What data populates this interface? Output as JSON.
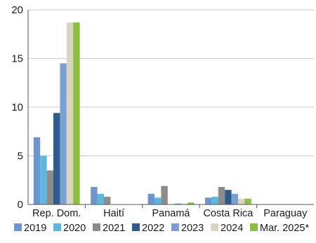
{
  "chart_data": {
    "type": "bar",
    "title": "",
    "xlabel": "",
    "ylabel": "",
    "ylim": [
      0,
      20
    ],
    "yticks": [
      "0",
      "5",
      "10",
      "15",
      "20"
    ],
    "grid": true,
    "legend_placement": "bottom",
    "categories": [
      "Rep. Dom.",
      "Haití",
      "Panamá",
      "Costa Rica",
      "Paraguay"
    ],
    "series": [
      {
        "name": "2019",
        "color": "#6e95cc",
        "values": [
          6.9,
          1.8,
          1.1,
          0.7,
          0.0
        ]
      },
      {
        "name": "2020",
        "color": "#5cb8e3",
        "values": [
          5.0,
          1.1,
          0.7,
          0.8,
          0.0
        ]
      },
      {
        "name": "2021",
        "color": "#8c8c8c",
        "values": [
          3.5,
          0.8,
          1.9,
          1.8,
          0.0
        ]
      },
      {
        "name": "2022",
        "color": "#2e5b8e",
        "values": [
          9.4,
          0.0,
          0.0,
          1.5,
          0.0
        ]
      },
      {
        "name": "2023",
        "color": "#7c9fd3",
        "values": [
          14.5,
          0.0,
          0.1,
          1.1,
          0.0
        ]
      },
      {
        "name": "2024",
        "color": "#d8d6c3",
        "values": [
          18.7,
          0.0,
          0.1,
          0.6,
          0.0
        ]
      },
      {
        "name": "Mar. 2025*",
        "color": "#8cbf3f",
        "values": [
          18.7,
          0.0,
          0.2,
          0.6,
          0.0
        ]
      }
    ]
  }
}
